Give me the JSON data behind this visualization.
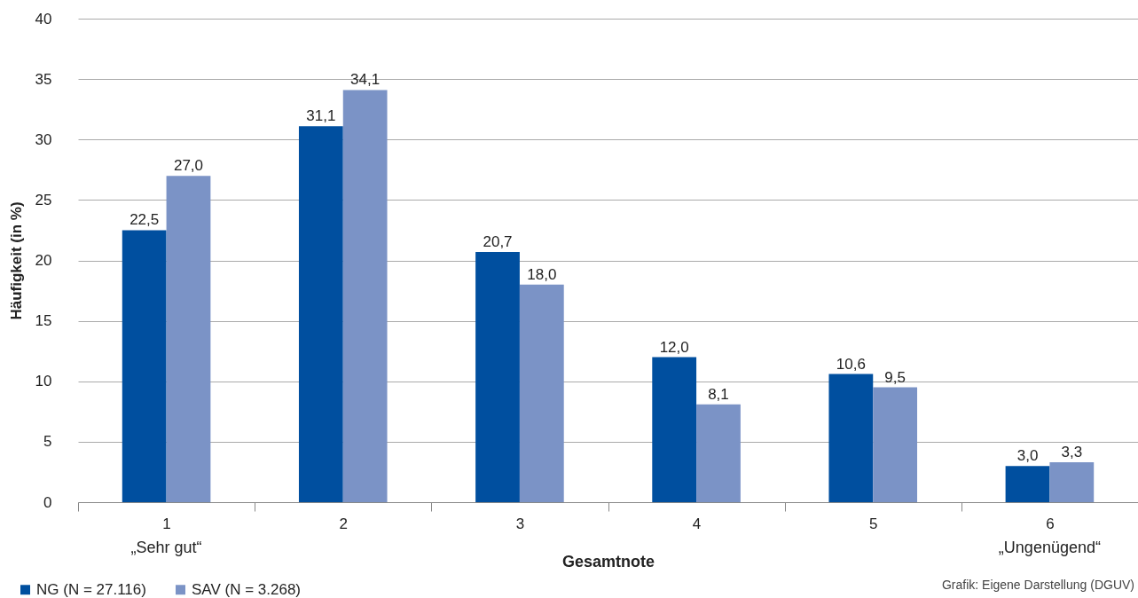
{
  "chart_data": {
    "type": "bar",
    "xlabel": "Gesamtnote",
    "ylabel": "Häufigkeit (in %)",
    "categories": [
      "1",
      "2",
      "3",
      "4",
      "5",
      "6"
    ],
    "series": [
      {
        "name": "NG (N = 27.116)",
        "color": "#004f9f",
        "values": [
          22.5,
          31.1,
          20.7,
          12.0,
          10.6,
          3.0
        ],
        "value_labels": [
          "22,5",
          "31,1",
          "20,7",
          "12,0",
          "10,6",
          "3,0"
        ]
      },
      {
        "name": "SAV (N = 3.268)",
        "color": "#7b93c6",
        "values": [
          27.0,
          34.1,
          18.0,
          8.1,
          9.5,
          3.3
        ],
        "value_labels": [
          "27,0",
          "34,1",
          "18,0",
          "8,1",
          "9,5",
          "3,3"
        ]
      }
    ],
    "ylim": [
      0,
      40
    ],
    "yticks": [
      0,
      5,
      10,
      15,
      20,
      25,
      30,
      35,
      40
    ],
    "grid": "y",
    "legend": "bottom left",
    "annotations": [
      "„Sehr gut“",
      "„Ungenügend“",
      "Grafik: Eigene Darstellung (DGUV)"
    ]
  }
}
